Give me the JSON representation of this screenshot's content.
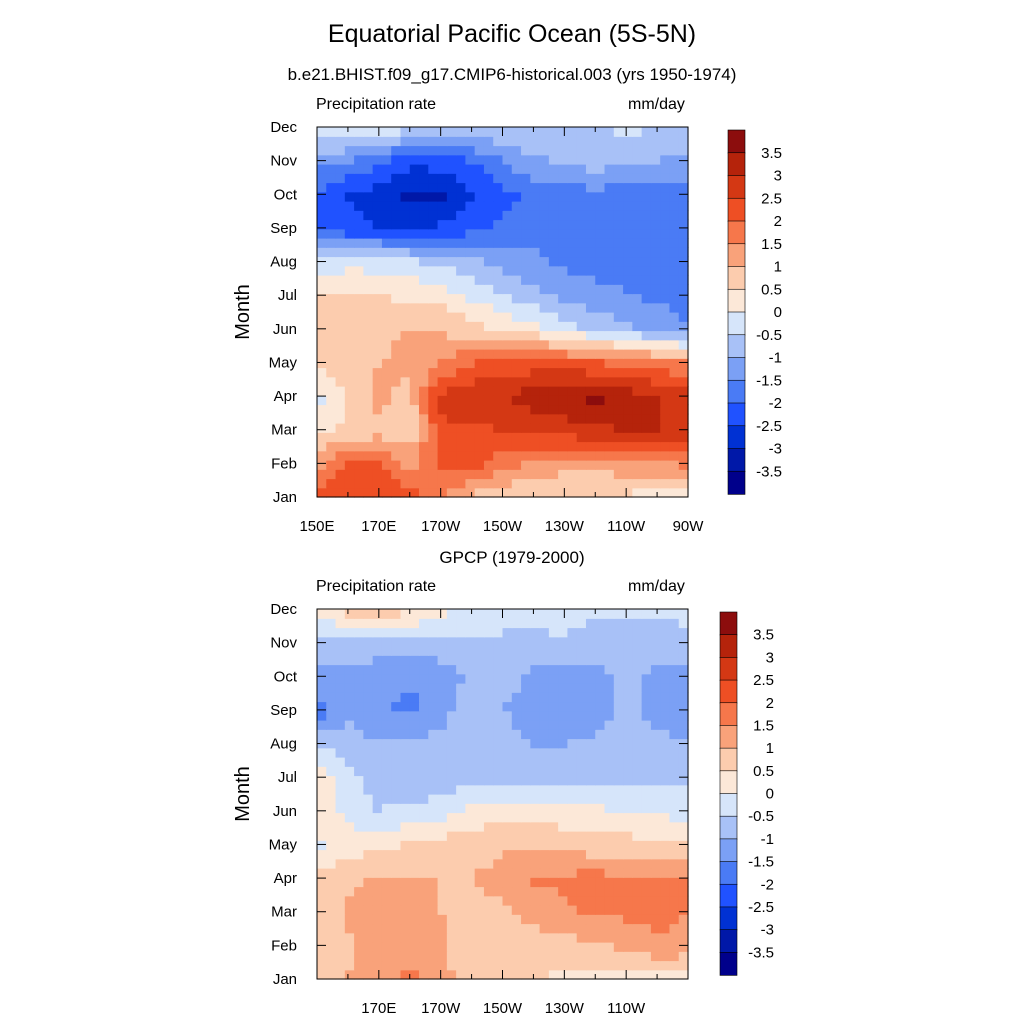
{
  "title": "Equatorial Pacific Ocean (5S-5N)",
  "subtitle": "b.e21.BHIST.f09_g17.CMIP6-historical.003 (yrs 1950-1974)",
  "colors": [
    "#00008b",
    "#0018a8",
    "#0031d3",
    "#2052ff",
    "#4a7bf5",
    "#7ba0f5",
    "#a8c1f7",
    "#d6e5fa",
    "#fce8d8",
    "#fcccae",
    "#f9a27a",
    "#f6774b",
    "#ee4f24",
    "#d43814",
    "#b5230b",
    "#8c0d0d"
  ],
  "chart_data": [
    {
      "type": "heatmap",
      "name": "model",
      "left_label": "Precipitation rate",
      "right_label": "mm/day",
      "ylabel": "Month",
      "months": [
        "Jan",
        "Feb",
        "Mar",
        "Apr",
        "May",
        "Jun",
        "Jul",
        "Aug",
        "Sep",
        "Oct",
        "Nov",
        "Dec"
      ],
      "x_ticks": [
        "150E",
        "170E",
        "170W",
        "150W",
        "130W",
        "110W",
        "90W"
      ],
      "x_range": [
        150,
        270
      ],
      "colorbar_labels": [
        "3.5",
        "3",
        "2.5",
        "2",
        "1.5",
        "1",
        "0.5",
        "0",
        "-0.5",
        "-1",
        "-1.5",
        "-2",
        "-2.5",
        "-3",
        "-3.5"
      ],
      "grid": [
        [
          2.2,
          2.5,
          2.5,
          2.4,
          1.5,
          0.8,
          0.6,
          0.6,
          0.5,
          0.5,
          0.4,
          0.3,
          0.3
        ],
        [
          1.3,
          2.0,
          2.0,
          1.3,
          2.2,
          2.3,
          1.7,
          1.4,
          1.2,
          1.2,
          1.3,
          1.4,
          1.6
        ],
        [
          0.4,
          0.6,
          0.8,
          0.6,
          2.4,
          2.4,
          2.5,
          2.6,
          2.8,
          2.9,
          3.0,
          3.0,
          2.8
        ],
        [
          -0.2,
          0.5,
          1.2,
          0.8,
          2.6,
          2.9,
          3.0,
          3.3,
          3.4,
          3.7,
          3.3,
          3.0,
          2.9
        ],
        [
          0.6,
          0.9,
          1.0,
          1.1,
          1.5,
          2.0,
          2.1,
          2.2,
          2.2,
          2.0,
          1.9,
          1.7,
          1.5
        ],
        [
          0.7,
          0.8,
          0.9,
          1.0,
          0.9,
          0.7,
          0.4,
          0.2,
          -0.3,
          -0.6,
          -0.9,
          -1.2,
          -1.5
        ],
        [
          0.7,
          0.6,
          0.5,
          0.4,
          0.3,
          -0.1,
          -0.4,
          -0.8,
          -1.1,
          -1.3,
          -1.5,
          -1.6,
          -1.7
        ],
        [
          -0.4,
          -0.2,
          -0.2,
          -0.4,
          -0.6,
          -0.9,
          -1.2,
          -1.4,
          -1.6,
          -1.7,
          -1.7,
          -1.7,
          -1.7
        ],
        [
          -2.0,
          -2.4,
          -2.5,
          -2.5,
          -2.4,
          -2.2,
          -1.9,
          -1.7,
          -1.7,
          -1.7,
          -1.7,
          -1.7,
          -1.7
        ],
        [
          -2.0,
          -2.5,
          -2.7,
          -3.2,
          -3.1,
          -2.6,
          -2.2,
          -1.8,
          -1.7,
          -1.7,
          -1.7,
          -1.7,
          -1.7
        ],
        [
          -1.3,
          -1.5,
          -1.9,
          -2.3,
          -2.3,
          -2.0,
          -1.5,
          -1.1,
          -0.9,
          -0.7,
          -0.9,
          -1.0,
          -1.1
        ],
        [
          -0.3,
          0.1,
          0.2,
          -0.5,
          -0.6,
          -0.6,
          -0.5,
          -0.5,
          -0.6,
          -0.6,
          -0.3,
          -0.5,
          -0.7
        ]
      ]
    },
    {
      "type": "heatmap",
      "name": "gpcp",
      "title": "GPCP (1979-2000)",
      "left_label": "Precipitation rate",
      "right_label": "mm/day",
      "ylabel": "Month",
      "months": [
        "Jan",
        "Feb",
        "Mar",
        "Apr",
        "May",
        "Jun",
        "Jul",
        "Aug",
        "Sep",
        "Oct",
        "Nov",
        "Dec"
      ],
      "x_ticks": [
        "170E",
        "170W",
        "150W",
        "130W",
        "110W"
      ],
      "x_range": [
        150,
        270
      ],
      "colorbar_labels": [
        "3.5",
        "3",
        "2.5",
        "2",
        "1.5",
        "1",
        "0.5",
        "0",
        "-0.5",
        "-1",
        "-1.5",
        "-2",
        "-2.5",
        "-3",
        "-3.5"
      ],
      "grid": [
        [
          0.9,
          1.0,
          1.4,
          1.6,
          1.2,
          0.7,
          0.5,
          0.5,
          0.4,
          0.3,
          0.2,
          0.3,
          0.3
        ],
        [
          0.8,
          0.9,
          1.2,
          1.3,
          1.1,
          0.7,
          0.6,
          0.7,
          0.8,
          0.9,
          1.1,
          1.4,
          1.3
        ],
        [
          0.7,
          1.1,
          1.2,
          1.1,
          1.0,
          0.9,
          0.9,
          1.2,
          1.4,
          1.6,
          1.6,
          1.7,
          1.5
        ],
        [
          0.6,
          0.9,
          1.1,
          1.0,
          1.0,
          1.0,
          1.2,
          1.6,
          1.6,
          1.7,
          1.5,
          1.6,
          1.5
        ],
        [
          -0.1,
          0.3,
          0.3,
          0.6,
          0.7,
          0.8,
          0.9,
          0.9,
          0.8,
          0.7,
          0.7,
          0.6,
          0.5
        ],
        [
          0.5,
          -0.2,
          -0.5,
          -0.4,
          -0.3,
          0.1,
          0.3,
          0.3,
          0.2,
          0.1,
          0.0,
          -0.1,
          -0.2
        ],
        [
          0.5,
          -0.3,
          -0.7,
          -0.8,
          -0.8,
          -0.7,
          -0.7,
          -0.6,
          -0.6,
          -0.6,
          -0.6,
          -0.6,
          -0.6
        ],
        [
          -0.5,
          -0.8,
          -0.9,
          -0.9,
          -0.9,
          -0.8,
          -0.8,
          -1.0,
          -1.0,
          -0.9,
          -0.8,
          -0.9,
          -1.0
        ],
        [
          -1.8,
          -1.1,
          -1.5,
          -1.6,
          -1.1,
          -0.8,
          -1.0,
          -1.2,
          -1.3,
          -1.2,
          -0.9,
          -1.1,
          -1.3
        ],
        [
          -1.2,
          -1.1,
          -1.2,
          -1.5,
          -1.3,
          -0.9,
          -0.8,
          -1.1,
          -1.3,
          -1.2,
          -0.8,
          -1.2,
          -1.3
        ],
        [
          -0.7,
          -0.8,
          -0.8,
          -0.7,
          -0.7,
          -0.6,
          -0.6,
          -0.6,
          -0.5,
          -0.7,
          -0.7,
          -0.7,
          -0.6
        ],
        [
          0.3,
          0.7,
          1.0,
          0.6,
          0.2,
          -0.1,
          -0.3,
          -0.4,
          -0.4,
          -0.4,
          -0.4,
          -0.4,
          -0.4
        ]
      ]
    }
  ]
}
